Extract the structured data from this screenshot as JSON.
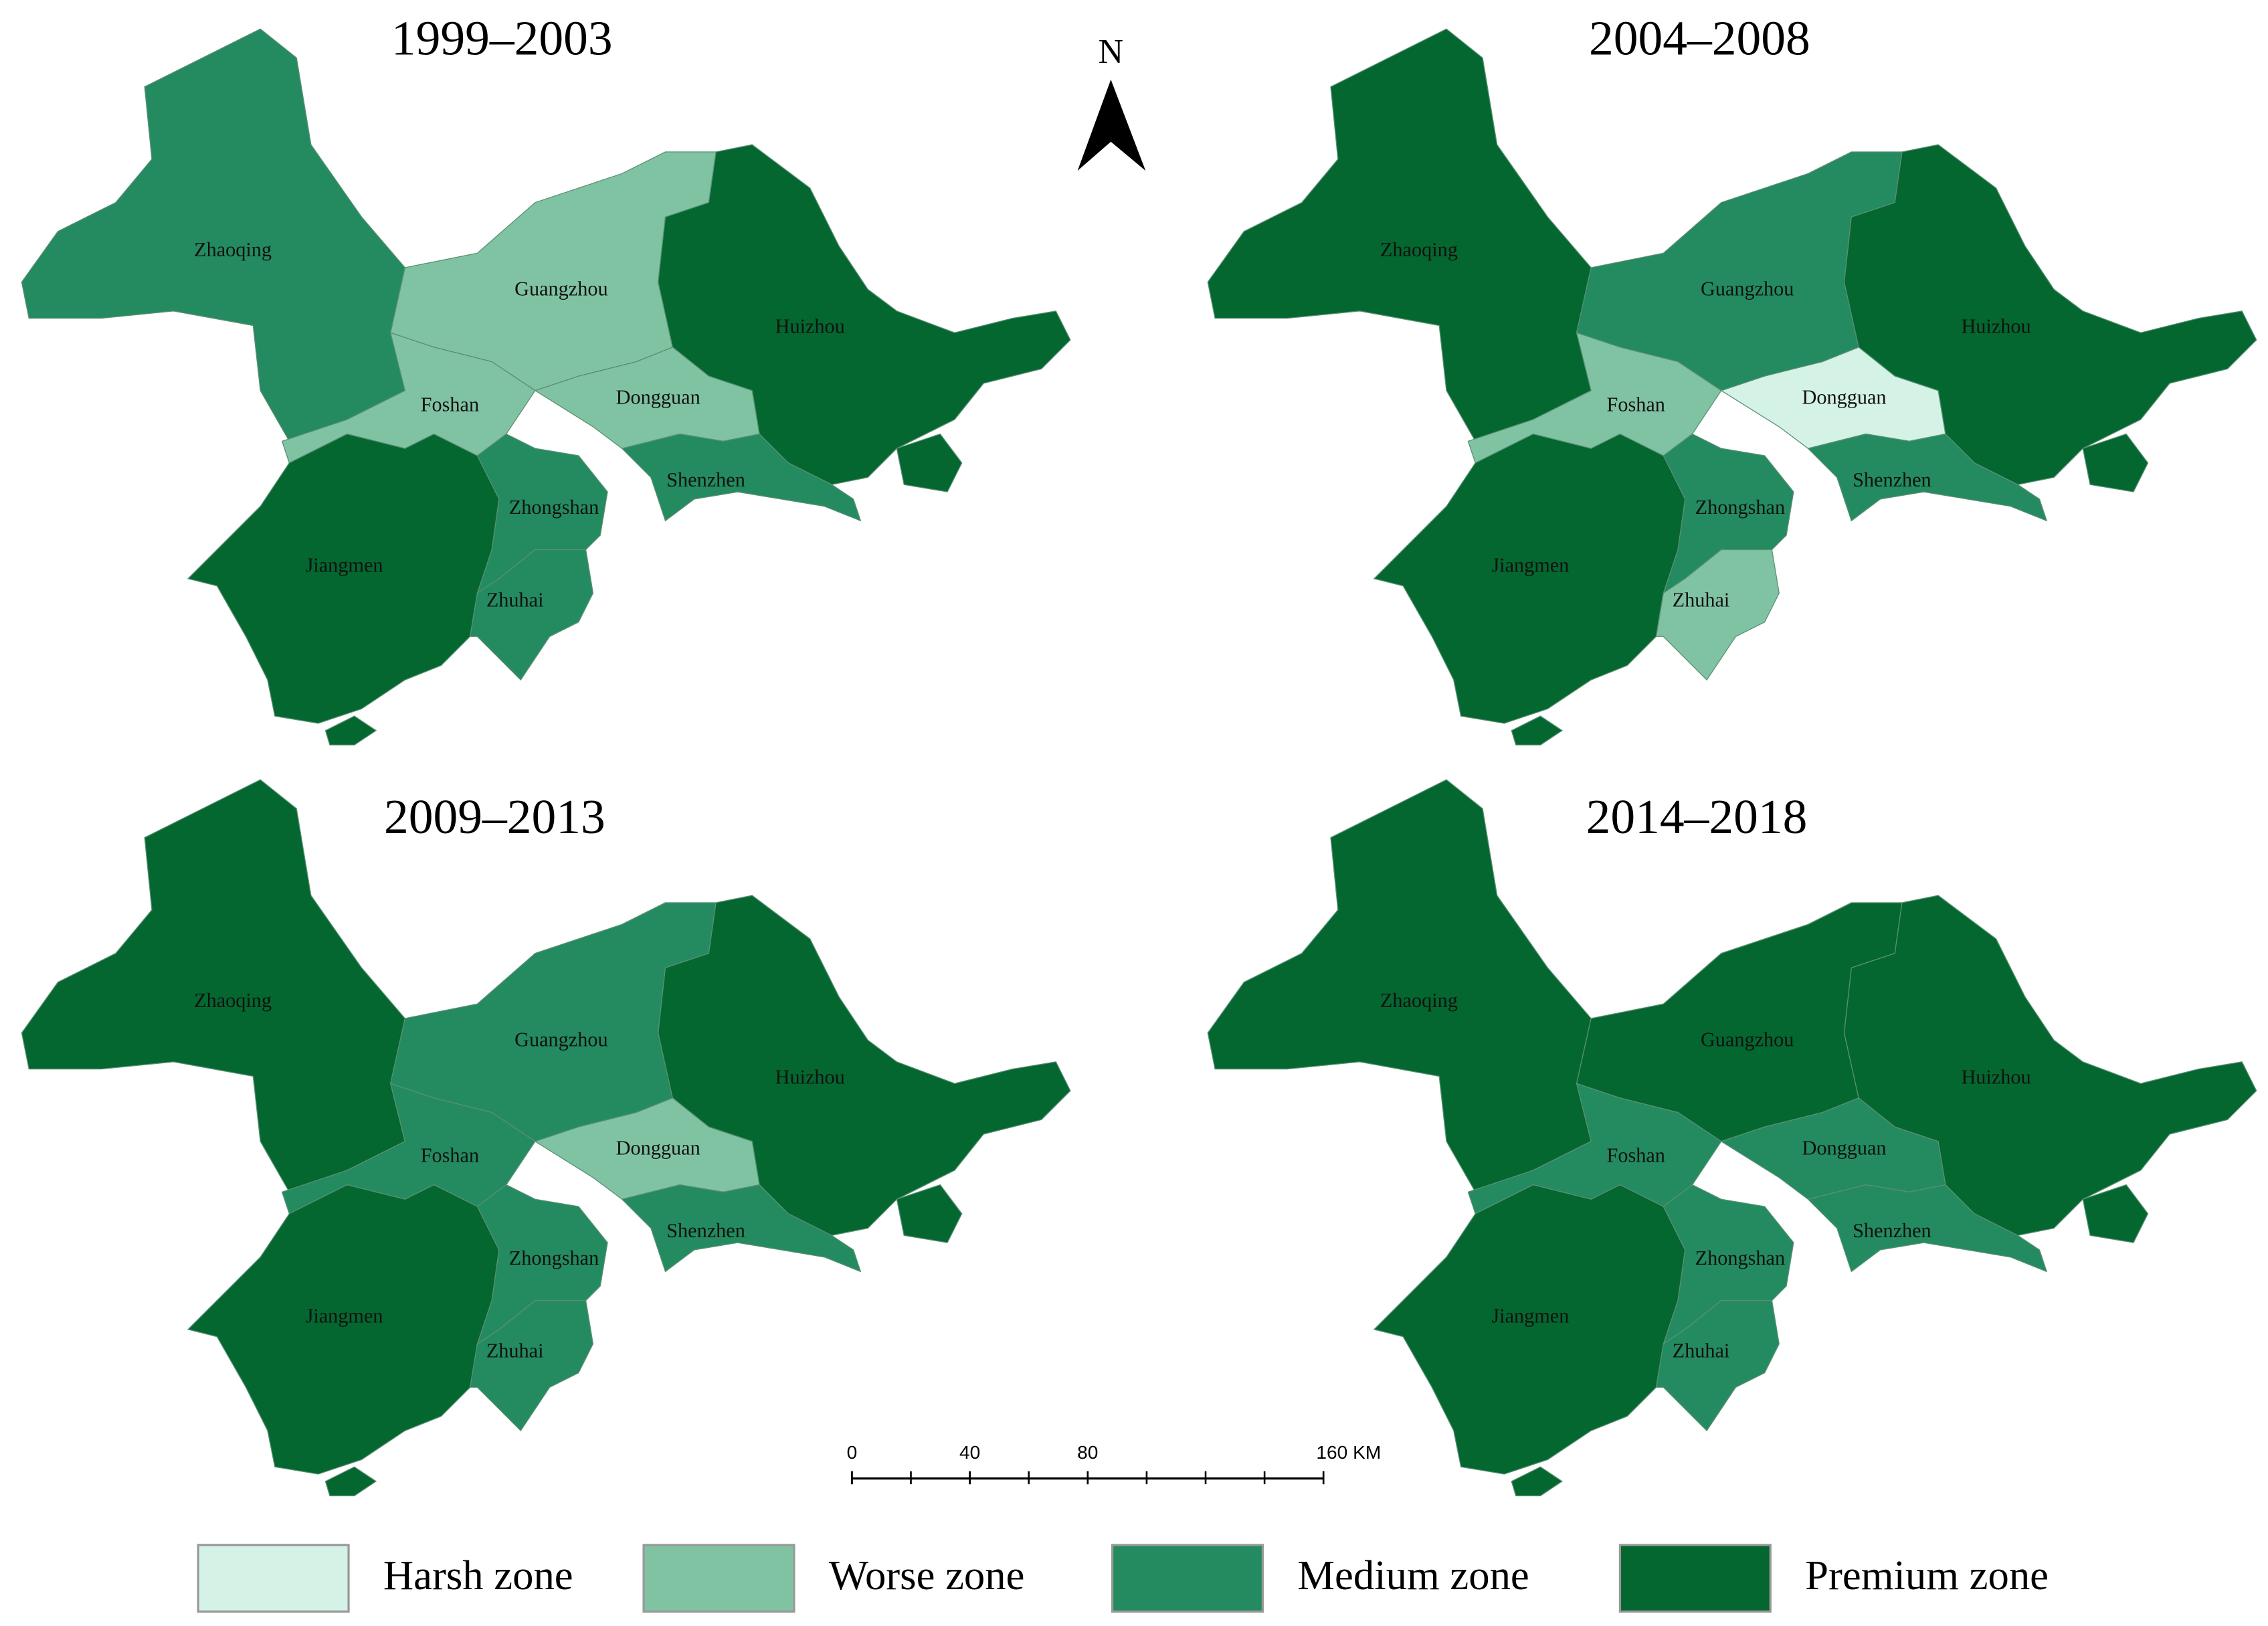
{
  "north": "N",
  "scale_bar": {
    "ticks": [
      0,
      40,
      80,
      {
        "value": 160,
        "label": "160 KM"
      }
    ]
  },
  "legend": [
    {
      "label": "Harsh zone",
      "color": "#d4f2e6"
    },
    {
      "label": "Worse zone",
      "color": "#80c3a3"
    },
    {
      "label": "Medium zone",
      "color": "#238b5f"
    },
    {
      "label": "Premium zone",
      "color": "#04672f"
    }
  ],
  "maps": [
    {
      "title": "1999–2003",
      "cities": [
        {
          "name": "Zhaoqing",
          "zone": "Medium zone"
        },
        {
          "name": "Guangzhou",
          "zone": "Worse zone"
        },
        {
          "name": "Huizhou",
          "zone": "Premium zone"
        },
        {
          "name": "Foshan",
          "zone": "Worse zone"
        },
        {
          "name": "Dongguan",
          "zone": "Worse zone"
        },
        {
          "name": "Shenzhen",
          "zone": "Medium zone"
        },
        {
          "name": "Zhongshan",
          "zone": "Medium zone"
        },
        {
          "name": "Jiangmen",
          "zone": "Premium zone"
        },
        {
          "name": "Zhuhai",
          "zone": "Medium zone"
        }
      ]
    },
    {
      "title": "2004–2008",
      "cities": [
        {
          "name": "Zhaoqing",
          "zone": "Premium zone"
        },
        {
          "name": "Guangzhou",
          "zone": "Medium zone"
        },
        {
          "name": "Huizhou",
          "zone": "Premium zone"
        },
        {
          "name": "Foshan",
          "zone": "Worse zone"
        },
        {
          "name": "Dongguan",
          "zone": "Harsh zone"
        },
        {
          "name": "Shenzhen",
          "zone": "Medium zone"
        },
        {
          "name": "Zhongshan",
          "zone": "Medium zone"
        },
        {
          "name": "Jiangmen",
          "zone": "Premium zone"
        },
        {
          "name": "Zhuhai",
          "zone": "Worse zone"
        }
      ]
    },
    {
      "title": "2009–2013",
      "cities": [
        {
          "name": "Zhaoqing",
          "zone": "Premium zone"
        },
        {
          "name": "Guangzhou",
          "zone": "Medium zone"
        },
        {
          "name": "Huizhou",
          "zone": "Premium zone"
        },
        {
          "name": "Foshan",
          "zone": "Medium zone"
        },
        {
          "name": "Dongguan",
          "zone": "Worse zone"
        },
        {
          "name": "Shenzhen",
          "zone": "Medium zone"
        },
        {
          "name": "Zhongshan",
          "zone": "Medium zone"
        },
        {
          "name": "Jiangmen",
          "zone": "Premium zone"
        },
        {
          "name": "Zhuhai",
          "zone": "Medium zone"
        }
      ]
    },
    {
      "title": "2014–2018",
      "cities": [
        {
          "name": "Zhaoqing",
          "zone": "Premium zone"
        },
        {
          "name": "Guangzhou",
          "zone": "Premium zone"
        },
        {
          "name": "Huizhou",
          "zone": "Premium zone"
        },
        {
          "name": "Foshan",
          "zone": "Medium zone"
        },
        {
          "name": "Dongguan",
          "zone": "Medium zone"
        },
        {
          "name": "Shenzhen",
          "zone": "Medium zone"
        },
        {
          "name": "Zhongshan",
          "zone": "Medium zone"
        },
        {
          "name": "Jiangmen",
          "zone": "Premium zone"
        },
        {
          "name": "Zhuhai",
          "zone": "Medium zone"
        }
      ]
    }
  ]
}
